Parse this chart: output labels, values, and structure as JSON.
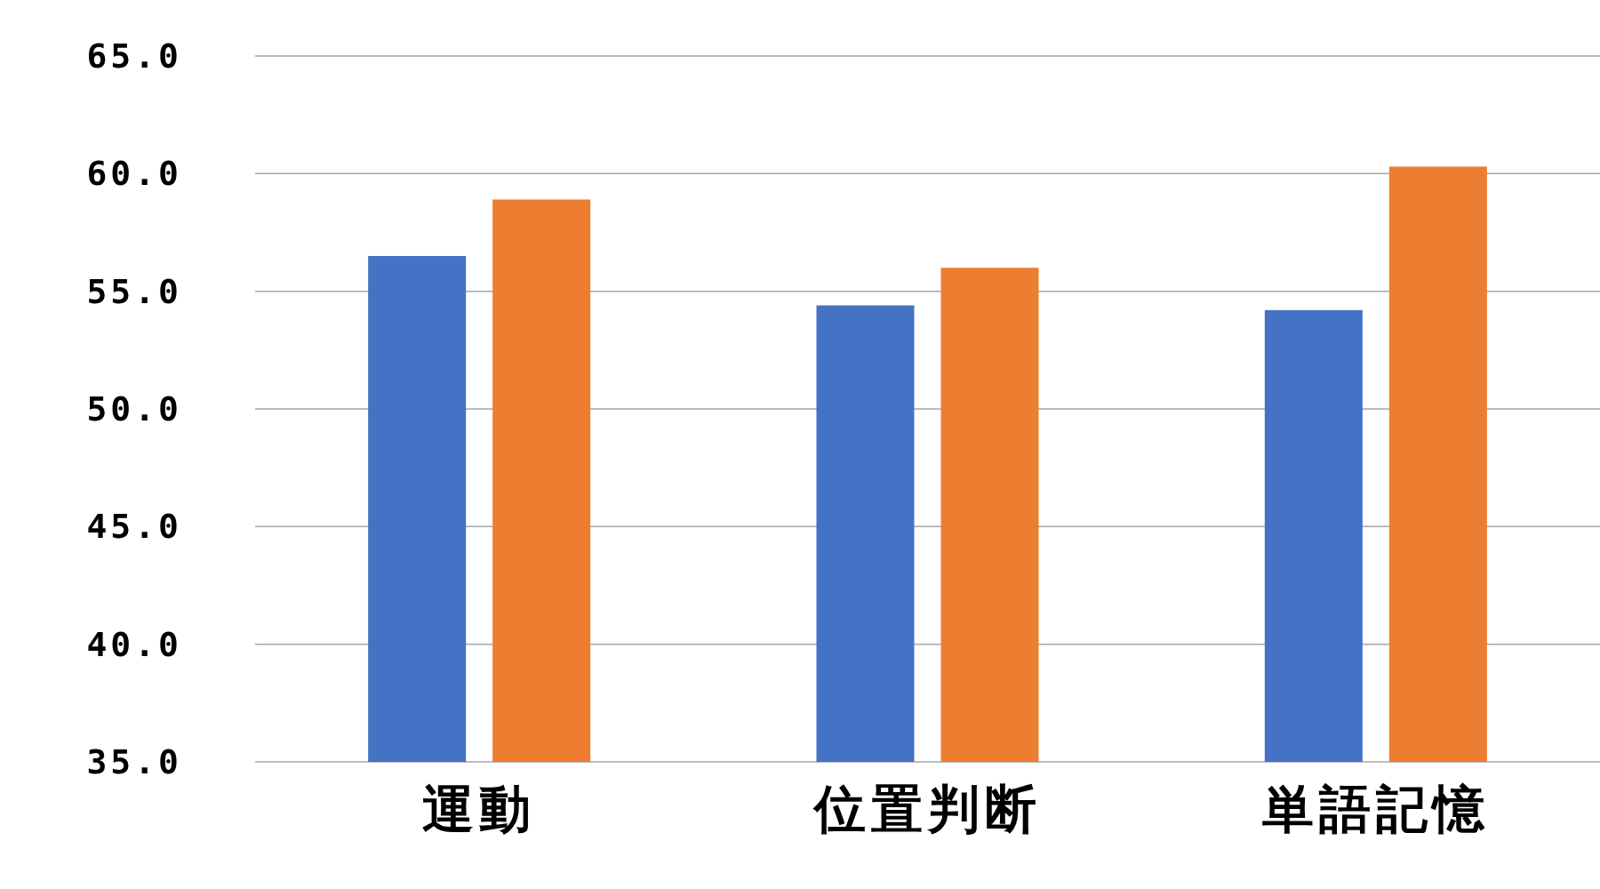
{
  "chart_data": {
    "type": "bar",
    "categories": [
      "運動",
      "位置判断",
      "単語記憶"
    ],
    "series": [
      {
        "color": "#4472c4",
        "values": [
          56.5,
          54.4,
          54.2
        ]
      },
      {
        "color": "#ed7d31",
        "values": [
          58.9,
          56.0,
          60.3
        ]
      }
    ],
    "ylim": [
      35,
      65
    ],
    "yticks": [
      {
        "value": 35,
        "label": "35.0"
      },
      {
        "value": 40,
        "label": "40.0"
      },
      {
        "value": 45,
        "label": "45.0"
      },
      {
        "value": 50,
        "label": "50.0"
      },
      {
        "value": 55,
        "label": "55.0"
      },
      {
        "value": 60,
        "label": "60.0"
      },
      {
        "value": 65,
        "label": "65.0"
      }
    ],
    "grid": "y"
  }
}
